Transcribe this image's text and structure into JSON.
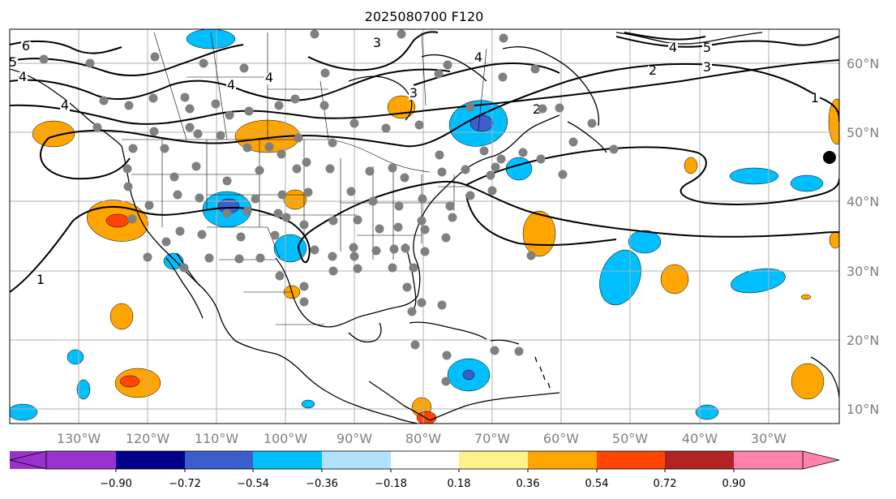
{
  "title": "2025080700 F120",
  "axes": {
    "lon_labels": [
      "130°W",
      "120°W",
      "110°W",
      "100°W",
      "90°W",
      "80°W",
      "70°W",
      "60°W",
      "50°W",
      "40°W",
      "30°W"
    ],
    "lat_labels": [
      "60°N",
      "50°N",
      "40°N",
      "30°N",
      "20°N",
      "10°N"
    ]
  },
  "colorbar": {
    "ticks": [
      "−0.90",
      "−0.72",
      "−0.54",
      "−0.36",
      "−0.18",
      "0.18",
      "0.36",
      "0.54",
      "0.72",
      "0.90"
    ],
    "colors": [
      "#9932cc",
      "#00008b",
      "#3a5fcd",
      "#00bfff",
      "#b0e2ff",
      "#ffffff",
      "#fff08b",
      "#ffa500",
      "#ff4500",
      "#b22222",
      "#ff82ab"
    ],
    "under_color": "#9932cc",
    "over_color": "#ff82ab"
  },
  "contour_labels": [
    "6",
    "5",
    "4",
    "3",
    "2",
    "1",
    "4",
    "4",
    "4",
    "4",
    "5",
    "3",
    "2",
    "4",
    "3",
    "1"
  ],
  "colors": {
    "positive_light": "#ffa500",
    "positive_strong": "#ff4500",
    "negative_light": "#00bfff",
    "negative_strong": "#3a5fcd",
    "station": "#808080",
    "grid": "#b0b0b0"
  }
}
